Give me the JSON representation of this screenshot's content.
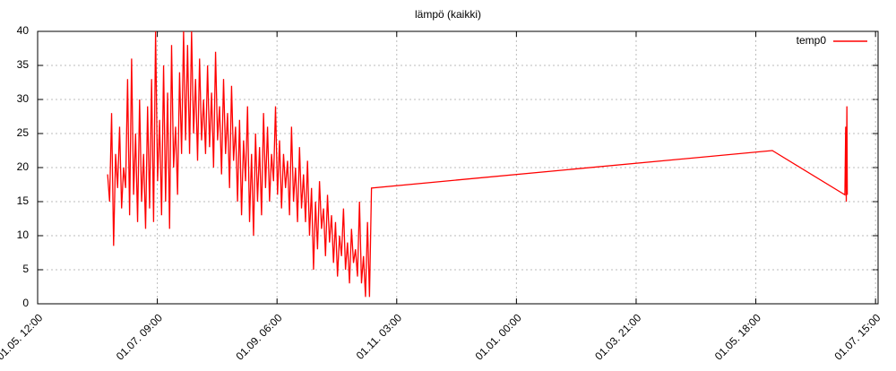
{
  "chart_data": {
    "type": "line",
    "title": "lämpö (kaikki)",
    "x": [
      35,
      36,
      37,
      38,
      39,
      40,
      41,
      42,
      43,
      44,
      45,
      46,
      47,
      48,
      49,
      50,
      51,
      52,
      53,
      54,
      55,
      56,
      57,
      58,
      59,
      60,
      61,
      62,
      63,
      64,
      65,
      66,
      67,
      68,
      69,
      70,
      71,
      72,
      73,
      74,
      75,
      76,
      77,
      78,
      79,
      80,
      81,
      82,
      83,
      84,
      85,
      86,
      87,
      88,
      89,
      90,
      91,
      92,
      93,
      94,
      95,
      96,
      97,
      98,
      99,
      100,
      101,
      102,
      103,
      104,
      105,
      106,
      107,
      108,
      109,
      110,
      111,
      112,
      113,
      114,
      115,
      116,
      117,
      118,
      119,
      120,
      121,
      122,
      123,
      124,
      125,
      126,
      127,
      128,
      129,
      130,
      131,
      132,
      133,
      134,
      135,
      136,
      137,
      138,
      139,
      140,
      141,
      142,
      143,
      144,
      145,
      146,
      147,
      148,
      149,
      150,
      151,
      152,
      153,
      154,
      155,
      156,
      157,
      158,
      159,
      160,
      161,
      162,
      163,
      164,
      165,
      166,
      167,
      367.5,
      403.8,
      404.2,
      404.5,
      404.8,
      405
    ],
    "series": [
      {
        "name": "temp0",
        "color": "#ff0000",
        "values": [
          19,
          15,
          28,
          8.5,
          22,
          17,
          26,
          14,
          20,
          17,
          33,
          13,
          36,
          16,
          25,
          12,
          30,
          15,
          22,
          11,
          29,
          14,
          33,
          12,
          40,
          18,
          27,
          13,
          35,
          15,
          31,
          11,
          38,
          20,
          26,
          16,
          34,
          22,
          40,
          24,
          38,
          22,
          40,
          25,
          33,
          21,
          36,
          24,
          30,
          22,
          35,
          23,
          31,
          20,
          37,
          24,
          29,
          19,
          33,
          22,
          28,
          17,
          32,
          21,
          26,
          15,
          27,
          13,
          24,
          18,
          29,
          12,
          22,
          10,
          25,
          15,
          23,
          13,
          28,
          17,
          26,
          15,
          22,
          18,
          29,
          16,
          24,
          14,
          22,
          17,
          21,
          13,
          26,
          15,
          20,
          12,
          23,
          14,
          19,
          12,
          21,
          10,
          17,
          5,
          15,
          8,
          18,
          11,
          14,
          7,
          16,
          9,
          13,
          6,
          12,
          4,
          10,
          7,
          14,
          5,
          9,
          3,
          11,
          6,
          8,
          4,
          15,
          3,
          7,
          1,
          12,
          1,
          17,
          22.5,
          16,
          26,
          15,
          29,
          16
        ]
      }
    ],
    "xlim": [
      0,
      420.4
    ],
    "xticks": [
      {
        "value": 0,
        "label": "01.05. 12:00"
      },
      {
        "value": 59.875,
        "label": "01.07. 09:00"
      },
      {
        "value": 119.75,
        "label": "01.09. 06:00"
      },
      {
        "value": 179.625,
        "label": "01.11. 03:00"
      },
      {
        "value": 239.5,
        "label": "01.01. 00:00"
      },
      {
        "value": 299.375,
        "label": "01.03. 21:00"
      },
      {
        "value": 359.25,
        "label": "01.05. 18:00"
      },
      {
        "value": 419.125,
        "label": "01.07. 15:00"
      }
    ],
    "ylim": [
      0,
      40
    ],
    "yticks": [
      0,
      5,
      10,
      15,
      20,
      25,
      30,
      35,
      40
    ],
    "grid": true,
    "legend": "top-right"
  }
}
